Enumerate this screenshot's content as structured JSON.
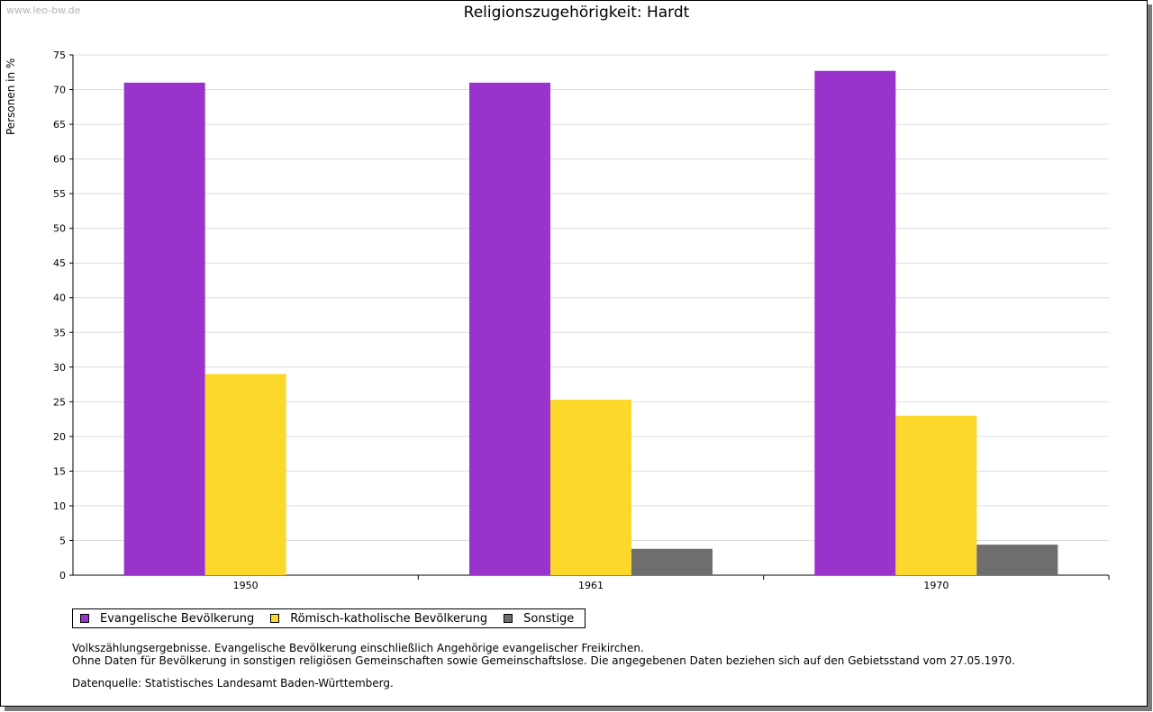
{
  "watermark": "www.leo-bw.de",
  "chart_data": {
    "type": "bar",
    "title": "Religionszugehörigkeit: Hardt",
    "xlabel": "",
    "ylabel": "Personen in %",
    "ylim": [
      0,
      75
    ],
    "ytick_step": 5,
    "grid": true,
    "categories": [
      "1950",
      "1961",
      "1970"
    ],
    "series": [
      {
        "name": "Evangelische Bevölkerung",
        "color": "#9933cc",
        "values": [
          71.0,
          71.0,
          72.7
        ]
      },
      {
        "name": "Römisch-katholische Bevölkerung",
        "color": "#fcd72c",
        "values": [
          29.0,
          25.3,
          23.0
        ]
      },
      {
        "name": "Sonstige",
        "color": "#6e6e6e",
        "values": [
          null,
          3.8,
          4.4
        ]
      }
    ],
    "legend_position": "bottom-left"
  },
  "notes": [
    "Volkszählungsergebnisse. Evangelische Bevölkerung einschließlich Angehörige evangelischer Freikirchen.",
    "Ohne Daten für Bevölkerung in sonstigen religiösen Gemeinschaften sowie Gemeinschaftslose. Die angegebenen Daten beziehen sich auf den Gebietsstand vom 27.05.1970."
  ],
  "source": "Datenquelle: Statistisches Landesamt Baden-Württemberg."
}
